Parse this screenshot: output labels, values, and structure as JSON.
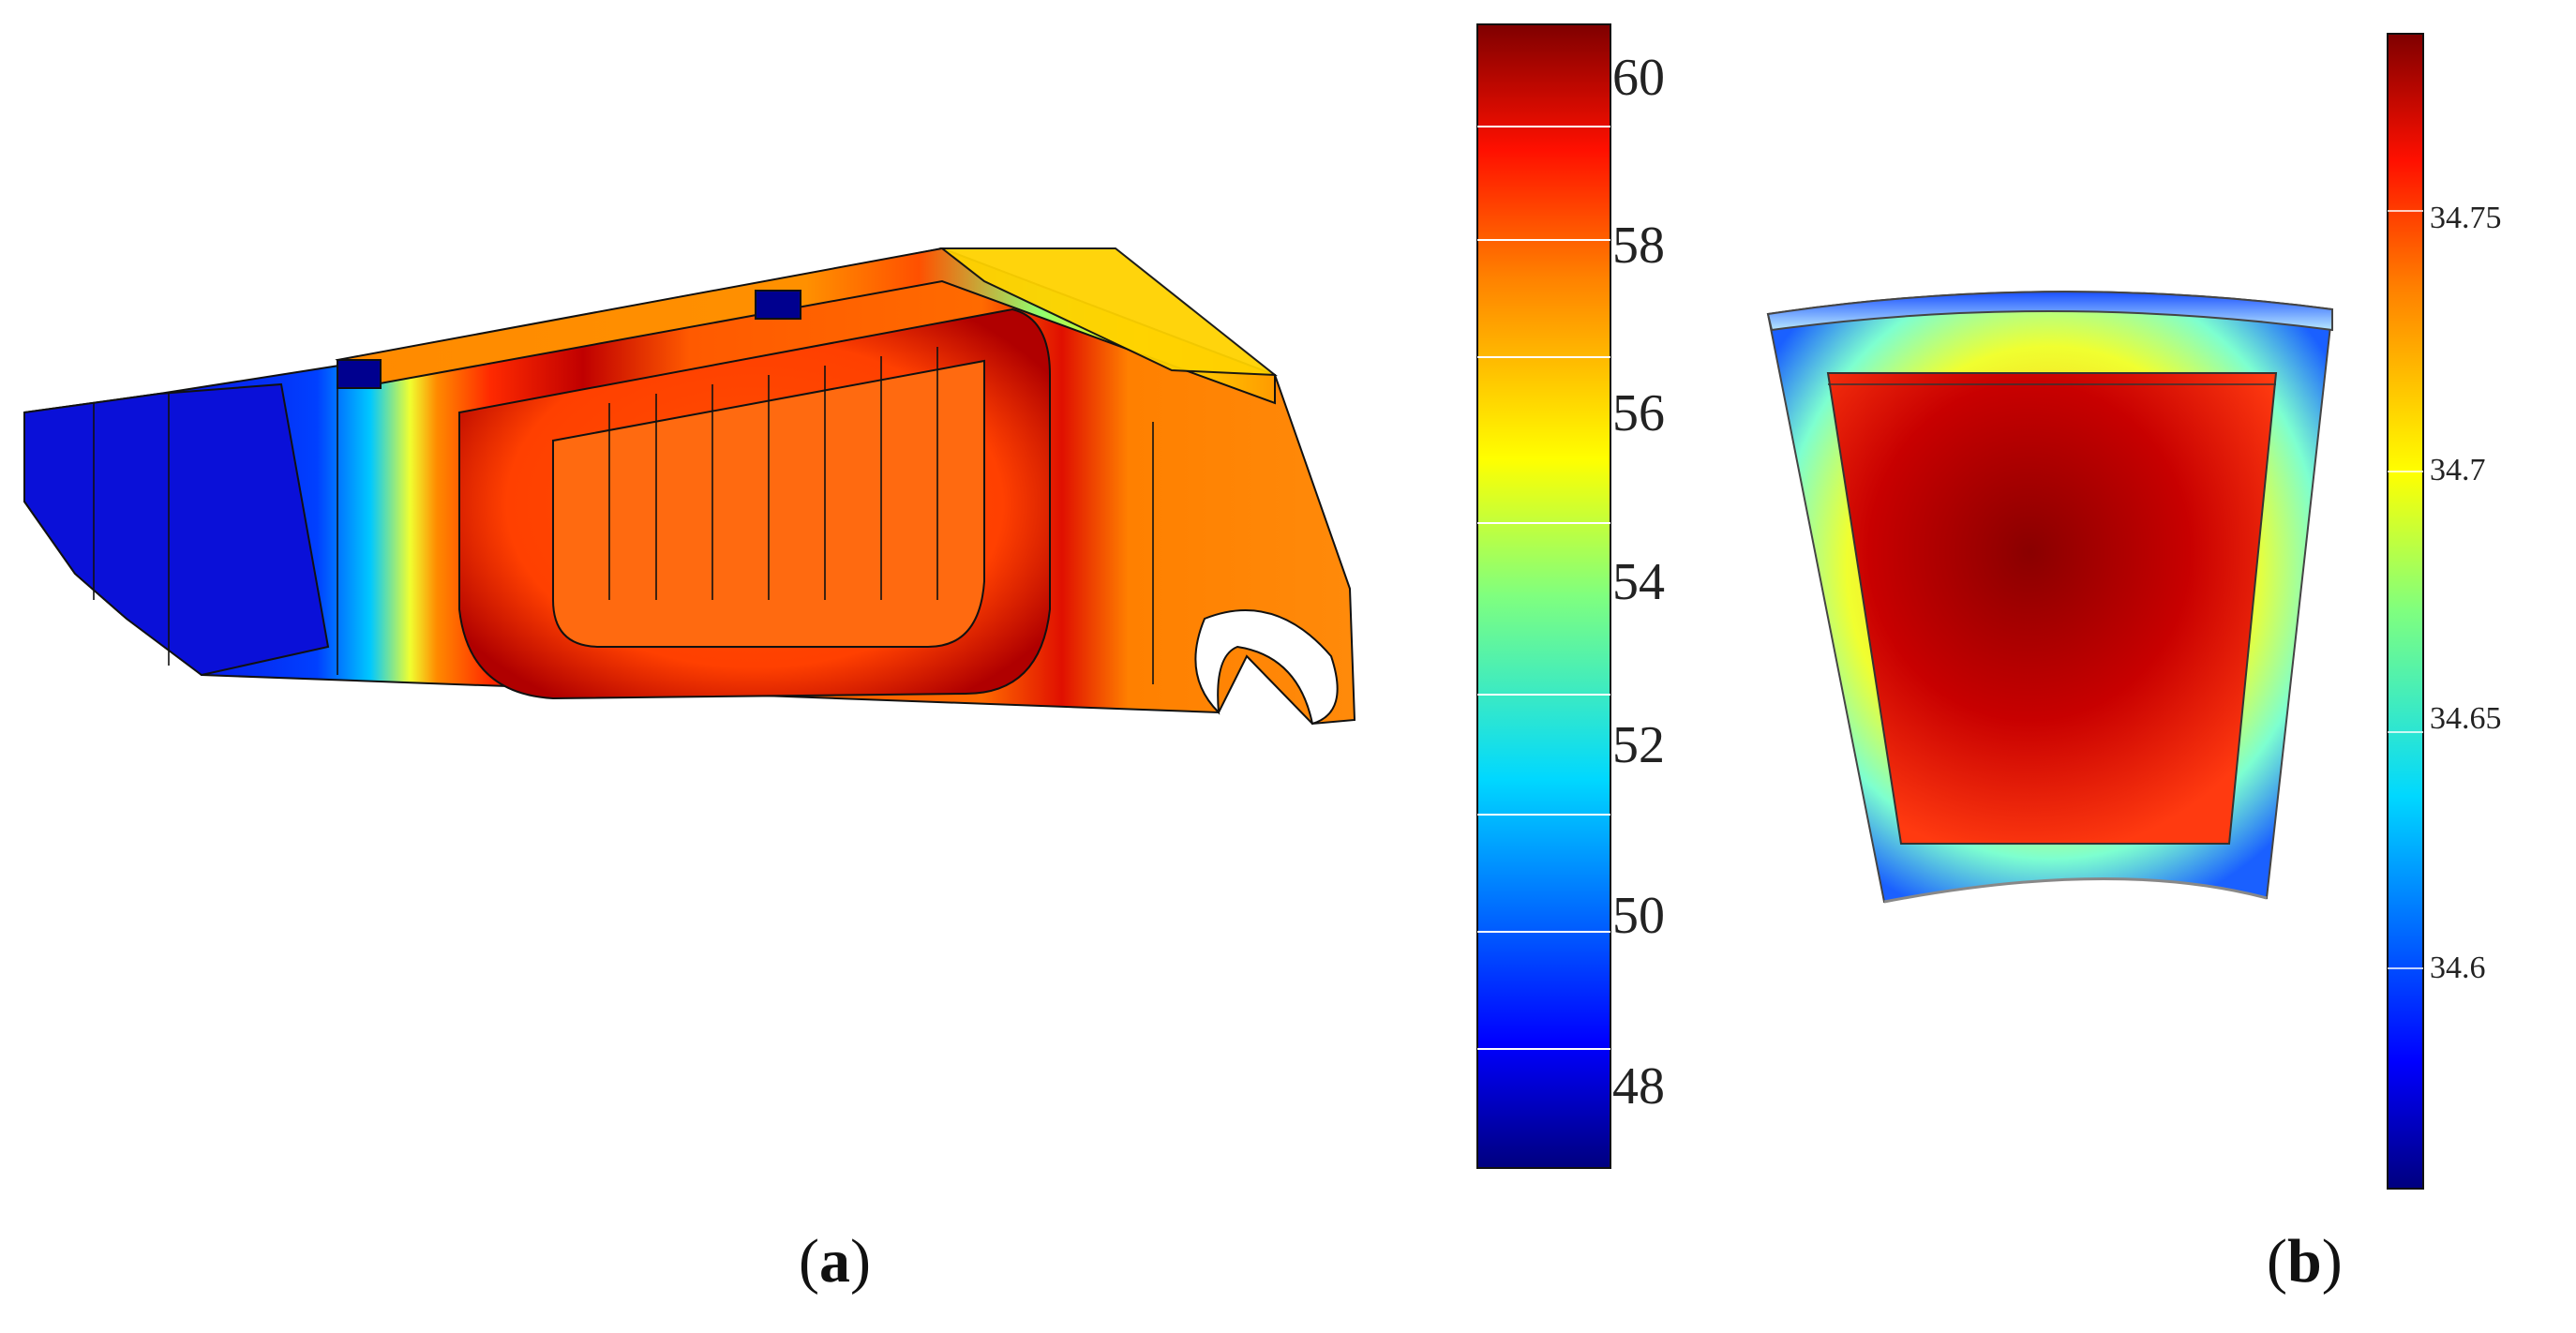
{
  "figure": {
    "panel_a": {
      "label": "a",
      "colorbar": {
        "ticks": [
          "48",
          "50",
          "52",
          "54",
          "56",
          "58",
          "60"
        ],
        "range": [
          46.8,
          60.7
        ]
      }
    },
    "panel_b": {
      "label": "b",
      "colorbar": {
        "ticks": [
          "34.6",
          "34.65",
          "34.7",
          "34.75"
        ],
        "range": [
          34.55,
          34.785
        ]
      }
    },
    "colormap": "jet",
    "colors": {
      "deep_red": "#7f0000",
      "red": "#e8180a",
      "orange": "#ff7f0e",
      "yellow": "#f5f500",
      "green": "#7dff7a",
      "cyan": "#00e8ff",
      "blue": "#0a3cff",
      "deep_blue": "#00008f",
      "outline": "#111111"
    }
  }
}
